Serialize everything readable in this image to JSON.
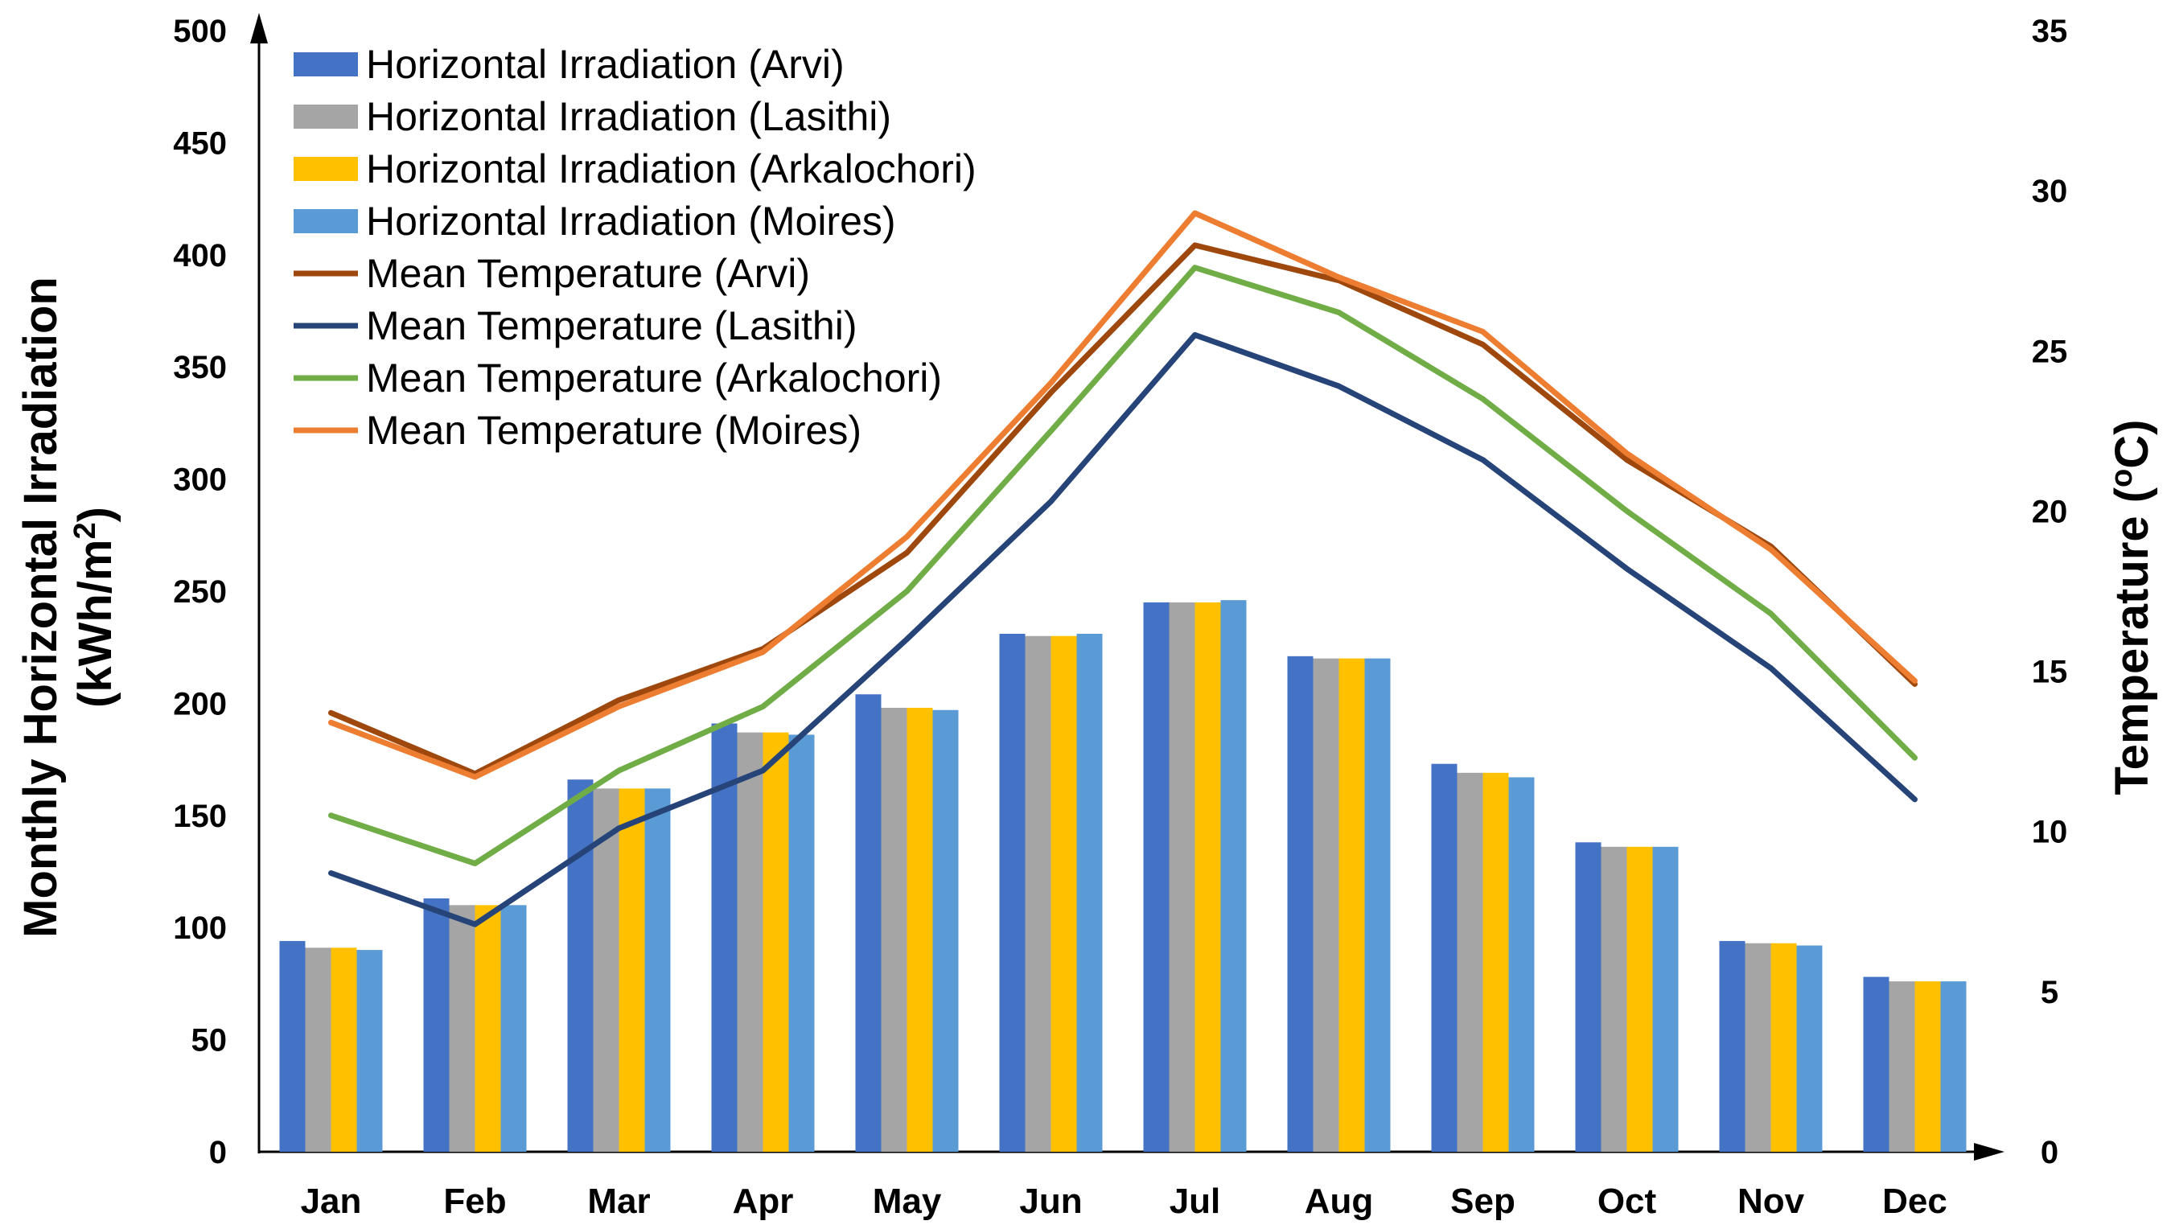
{
  "chart_data": {
    "type": "bar",
    "categories": [
      "Jan",
      "Feb",
      "Mar",
      "Apr",
      "May",
      "Jun",
      "Jul",
      "Aug",
      "Sep",
      "Oct",
      "Nov",
      "Dec"
    ],
    "bar_series": [
      {
        "name": "Horizontal Irradiation (Arvi)",
        "color": "#4472C4",
        "values": [
          94,
          113,
          166,
          191,
          204,
          231,
          245,
          221,
          173,
          138,
          94,
          78
        ]
      },
      {
        "name": "Horizontal Irradiation (Lasithi)",
        "color": "#A5A5A5",
        "values": [
          91,
          110,
          162,
          187,
          198,
          230,
          245,
          220,
          169,
          136,
          93,
          76
        ]
      },
      {
        "name": "Horizontal Irradiation (Arkalochori)",
        "color": "#FFC000",
        "values": [
          91,
          110,
          162,
          187,
          198,
          230,
          245,
          220,
          169,
          136,
          93,
          76
        ]
      },
      {
        "name": "Horizontal Irradiation (Moires)",
        "color": "#5B9BD5",
        "values": [
          90,
          110,
          162,
          186,
          197,
          231,
          246,
          220,
          167,
          136,
          92,
          76
        ]
      }
    ],
    "line_series": [
      {
        "name": "Mean Temperature (Arvi)",
        "color": "#9E480E",
        "values": [
          13.7,
          11.8,
          14.1,
          15.7,
          18.7,
          23.7,
          28.3,
          27.2,
          25.2,
          21.6,
          18.9,
          14.6
        ]
      },
      {
        "name": "Mean Temperature (Lasithi)",
        "color": "#264478",
        "values": [
          8.7,
          7.1,
          10.1,
          11.9,
          16.0,
          20.3,
          25.5,
          23.9,
          21.6,
          18.2,
          15.1,
          11.0
        ]
      },
      {
        "name": "Mean Temperature (Arkalochori)",
        "color": "#70AD47",
        "values": [
          10.5,
          9.0,
          11.9,
          13.9,
          17.5,
          22.5,
          27.6,
          26.2,
          23.5,
          20.0,
          16.8,
          12.3
        ]
      },
      {
        "name": "Mean Temperature (Moires)",
        "color": "#ED7D31",
        "values": [
          13.4,
          11.7,
          13.9,
          15.6,
          19.2,
          24.0,
          29.3,
          27.3,
          25.6,
          21.8,
          18.8,
          14.7
        ]
      }
    ],
    "legend_order": [
      "Horizontal Irradiation (Arvi)",
      "Horizontal Irradiation (Lasithi)",
      "Horizontal Irradiation (Arkalochori)",
      "Horizontal Irradiation (Moires)",
      "Mean Temperature (Arvi)",
      "Mean Temperature (Lasithi)",
      "Mean Temperature (Arkalochori)",
      "Mean Temperature (Moires)"
    ],
    "legend_position": "top-left",
    "ylabel": "Monthly Horizontal Irradiation",
    "ylabel_unit": "(kWh/m",
    "ylabel_unit_sup": "2",
    "ylabel_unit_end": ")",
    "ylim": [
      0,
      500
    ],
    "yticks": [
      0,
      50,
      100,
      150,
      200,
      250,
      300,
      350,
      400,
      450,
      500
    ],
    "y2label_prefix": "Temperature (",
    "y2label_sup": "o",
    "y2label_suffix": "C)",
    "y2lim": [
      0,
      35
    ],
    "y2ticks": [
      0,
      5,
      10,
      15,
      20,
      25,
      30,
      35
    ],
    "grid": false
  }
}
